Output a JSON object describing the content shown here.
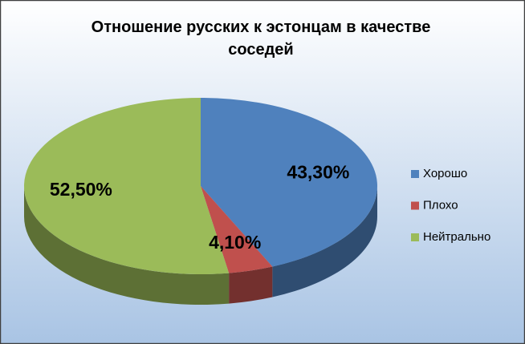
{
  "chart_data": {
    "type": "pie",
    "title": "Отношение русских к эстонцам в качестве соседей",
    "categories": [
      "Хорошо",
      "Плохо",
      "Нейтрально"
    ],
    "values": [
      43.3,
      4.1,
      52.5
    ],
    "value_labels": [
      "43,30%",
      "4,10%",
      "52,50%"
    ],
    "colors": [
      "#4f81bd",
      "#c0504d",
      "#9bbb59"
    ],
    "legend": "right"
  }
}
